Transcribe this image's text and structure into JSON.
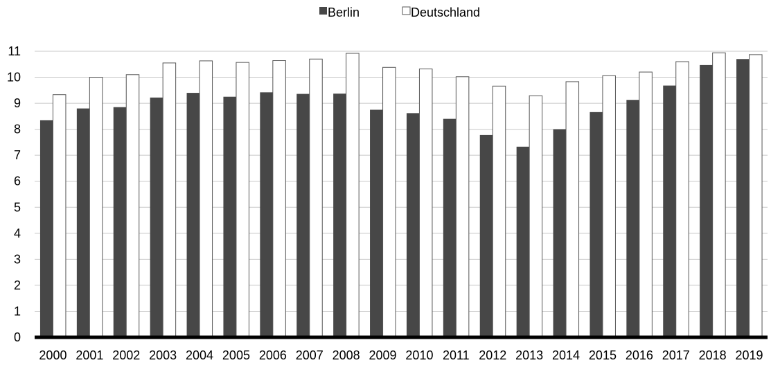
{
  "chart_data": {
    "type": "bar",
    "categories": [
      "2000",
      "2001",
      "2002",
      "2003",
      "2004",
      "2005",
      "2006",
      "2007",
      "2008",
      "2009",
      "2010",
      "2011",
      "2012",
      "2013",
      "2014",
      "2015",
      "2016",
      "2017",
      "2018",
      "2019"
    ],
    "series": [
      {
        "name": "Berlin",
        "color": "#474747",
        "values": [
          8.35,
          8.8,
          8.85,
          9.22,
          9.4,
          9.25,
          9.42,
          9.36,
          9.37,
          8.75,
          8.62,
          8.4,
          7.78,
          7.33,
          8.0,
          8.66,
          9.13,
          9.68,
          10.47,
          10.7
        ]
      },
      {
        "name": "Deutschland",
        "color": "#ffffff",
        "values": [
          9.33,
          10.0,
          10.1,
          10.55,
          10.63,
          10.57,
          10.64,
          10.7,
          10.92,
          10.38,
          10.32,
          10.02,
          9.66,
          9.29,
          9.83,
          10.06,
          10.2,
          10.6,
          10.94,
          10.87
        ]
      }
    ],
    "ylim": [
      0,
      11
    ],
    "yticks": [
      "0",
      "1",
      "2",
      "3",
      "4",
      "5",
      "6",
      "7",
      "8",
      "9",
      "10",
      "11"
    ],
    "grid": true,
    "legend_position": "top-center"
  }
}
